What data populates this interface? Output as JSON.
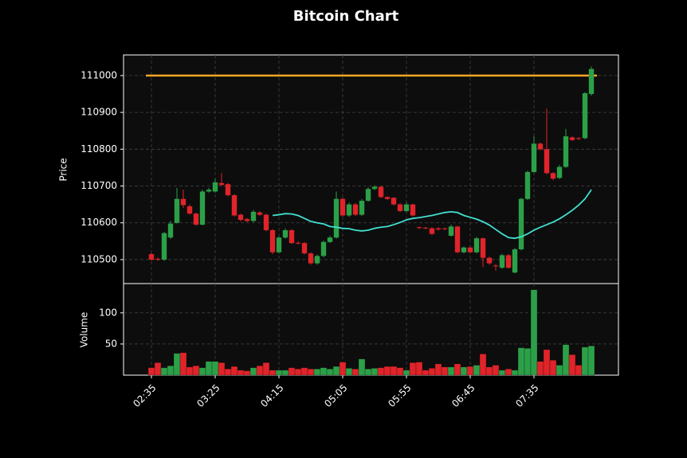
{
  "chart_data": {
    "type": "candlestick",
    "title": "Bitcoin Chart",
    "ylabel": "Price",
    "categories": [
      "02:35",
      null,
      null,
      null,
      null,
      null,
      null,
      null,
      null,
      null,
      "03:25",
      null,
      null,
      null,
      null,
      null,
      null,
      null,
      null,
      null,
      "04:15",
      null,
      null,
      null,
      null,
      null,
      null,
      null,
      null,
      null,
      "05:05",
      null,
      null,
      null,
      null,
      null,
      null,
      null,
      null,
      null,
      "05:55",
      null,
      null,
      null,
      null,
      null,
      null,
      null,
      null,
      null,
      "06:45",
      null,
      null,
      null,
      null,
      null,
      null,
      null,
      null,
      null,
      "07:35",
      null,
      null,
      null,
      null,
      null,
      null,
      null,
      null,
      null
    ],
    "open": [
      110515,
      110502,
      110500,
      110560,
      110600,
      110665,
      110645,
      110625,
      110595,
      110685,
      110685,
      110708,
      110705,
      110675,
      110622,
      110610,
      110605,
      110628,
      110622,
      110580,
      110520,
      110560,
      110580,
      110546,
      110545,
      110517,
      110490,
      110510,
      110548,
      110560,
      110665,
      110620,
      110650,
      110622,
      110660,
      110692,
      110698,
      110670,
      110668,
      110650,
      110632,
      110650,
      110588,
      110587,
      110585,
      110585,
      110585,
      110565,
      110590,
      110520,
      110533,
      110520,
      110558,
      110505,
      110484,
      110478,
      110512,
      110465,
      110528,
      110665,
      110738,
      110815,
      110800,
      110735,
      110722,
      110752,
      110832,
      110830,
      110830,
      110950
    ],
    "high": [
      110518,
      110506,
      110575,
      110605,
      110695,
      110690,
      110650,
      110628,
      110690,
      110695,
      110720,
      110735,
      110708,
      110678,
      110625,
      110613,
      110635,
      110632,
      110625,
      110583,
      110563,
      110585,
      110583,
      110550,
      110548,
      110520,
      110514,
      110552,
      110565,
      110685,
      110668,
      110655,
      110654,
      110665,
      110697,
      110702,
      110700,
      110672,
      110670,
      110654,
      110655,
      110652,
      110590,
      110589,
      110588,
      110588,
      110587,
      110595,
      110592,
      110536,
      110536,
      110562,
      110560,
      110508,
      110488,
      110516,
      110515,
      110532,
      110668,
      110742,
      110835,
      110818,
      110910,
      110738,
      110757,
      110855,
      110835,
      110833,
      110955,
      111025
    ],
    "low": [
      110497,
      110497,
      110497,
      110556,
      110598,
      110640,
      110622,
      110592,
      110593,
      110682,
      110682,
      110700,
      110672,
      110617,
      110604,
      110602,
      110602,
      110619,
      110577,
      110515,
      110517,
      110557,
      110542,
      110541,
      110514,
      110486,
      110486,
      110506,
      110545,
      110557,
      110617,
      110616,
      110619,
      110619,
      110657,
      110689,
      110667,
      110662,
      110647,
      110629,
      110629,
      110617,
      110583,
      110582,
      110567,
      110579,
      110580,
      110562,
      110517,
      110517,
      110517,
      110517,
      110480,
      110486,
      110470,
      110475,
      110475,
      110462,
      110525,
      110662,
      110735,
      110797,
      110732,
      110716,
      110719,
      110749,
      110822,
      110825,
      110827,
      110945
    ],
    "close": [
      110500,
      110500,
      110572,
      110598,
      110665,
      110648,
      110625,
      110595,
      110685,
      110690,
      110710,
      110703,
      110675,
      110620,
      110608,
      110605,
      110630,
      110622,
      110580,
      110520,
      110560,
      110580,
      110545,
      110544,
      110517,
      110490,
      110510,
      110548,
      110560,
      110665,
      110620,
      110650,
      110622,
      110660,
      110692,
      110698,
      110670,
      110665,
      110650,
      110632,
      110650,
      110620,
      110586,
      110585,
      110570,
      110582,
      110583,
      110590,
      110520,
      110533,
      110520,
      110558,
      110505,
      110490,
      110482,
      110512,
      110478,
      110528,
      110665,
      110738,
      110815,
      110800,
      110735,
      110720,
      110752,
      110835,
      110825,
      110828,
      110952,
      111018
    ],
    "up_color": "#2ca048",
    "down_color": "#e0242a",
    "ylim": [
      110435,
      111056
    ],
    "yticks": [
      110500,
      110600,
      110700,
      110800,
      110900,
      111000
    ],
    "hline": {
      "value": 111000,
      "color": "#f5a623"
    },
    "moving_average": {
      "color": "#40e0d0",
      "values": [
        null,
        null,
        null,
        null,
        null,
        null,
        null,
        null,
        null,
        null,
        null,
        null,
        null,
        null,
        null,
        null,
        null,
        null,
        null,
        110620,
        110622,
        110625,
        110624,
        110620,
        110612,
        110604,
        110600,
        110597,
        110590,
        110588,
        110585,
        110584,
        110580,
        110578,
        110580,
        110585,
        110588,
        110590,
        110595,
        110601,
        110608,
        110612,
        110614,
        110617,
        110620,
        110624,
        110628,
        110630,
        110628,
        110620,
        110615,
        110610,
        110603,
        110594,
        110582,
        110570,
        110560,
        110558,
        110562,
        110570,
        110580,
        110588,
        110595,
        110602,
        110611,
        110622,
        110634,
        110648,
        110665,
        110690
      ]
    },
    "volume": {
      "ylabel": "Volume",
      "ylim": [
        0,
        147
      ],
      "yticks": [
        50,
        100
      ],
      "values": [
        12,
        20,
        12,
        15,
        35,
        36,
        13,
        15,
        12,
        22,
        22,
        20,
        10,
        14,
        8,
        7,
        12,
        15,
        20,
        8,
        8,
        8,
        12,
        10,
        12,
        10,
        10,
        12,
        10,
        14,
        21,
        11,
        10,
        26,
        10,
        11,
        12,
        14,
        14,
        12,
        8,
        20,
        21,
        8,
        11,
        18,
        13,
        13,
        18,
        13,
        14,
        16,
        34,
        13,
        16,
        8,
        10,
        8,
        44,
        43,
        137,
        22,
        41,
        24,
        16,
        49,
        33,
        16,
        45,
        47
      ]
    },
    "grid": true
  }
}
